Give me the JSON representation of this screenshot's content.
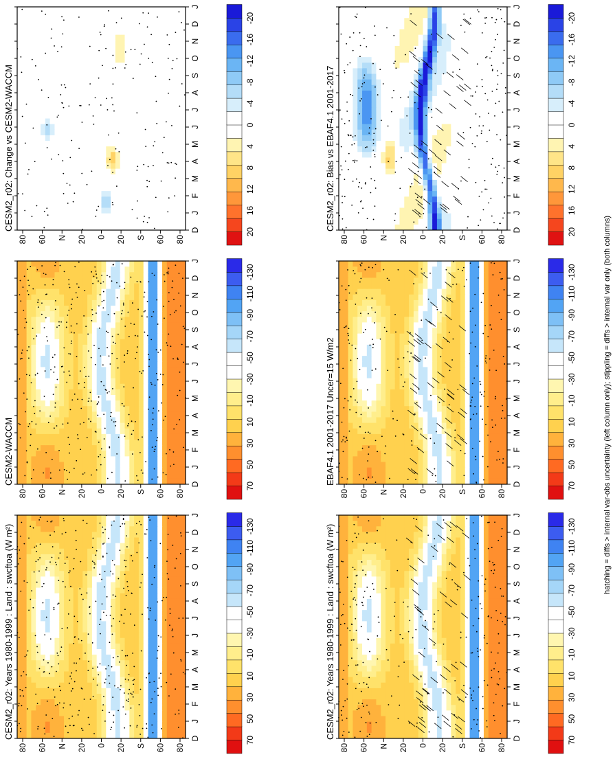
{
  "figure": {
    "footer_note": "hatching = diffs > internal var-obs uncertainty (left column only); stippling = diffs > internal var only (both columns)"
  },
  "colors": {
    "abs_levels_palette": [
      "#2a2ae8",
      "#3c5cf0",
      "#3f83f2",
      "#52a4f4",
      "#7ec0f6",
      "#a5d6f8",
      "#c6e6fa",
      "#ffffff",
      "#ffffff",
      "#fff6b0",
      "#ffee8c",
      "#ffe26a",
      "#ffd14e",
      "#ffb23c",
      "#ff8f2e",
      "#ff6a22",
      "#f33a18",
      "#e01010"
    ],
    "diff_levels_palette": [
      "#1a1ad8",
      "#2a43e6",
      "#3a6cee",
      "#4a96f2",
      "#6bb5f4",
      "#8fcaf6",
      "#b4ddf8",
      "#d7eefb",
      "#ffffff",
      "#ffffff",
      "#fff4b2",
      "#ffe588",
      "#ffd264",
      "#ffb84c",
      "#ff973a",
      "#ff722c",
      "#f5461e",
      "#e01212"
    ]
  },
  "chart_data": [
    {
      "type": "heatmap",
      "panel": "top-left",
      "title": "CESM2_r02: Years 1980-1999 : Land : swcftoa (W m²)",
      "x_ticks": [
        "D",
        "J",
        "F",
        "M",
        "A",
        "M",
        "J",
        "J",
        "A",
        "S",
        "O",
        "N",
        "D",
        "J"
      ],
      "y_ticks": [
        "80",
        "60",
        "N",
        "20",
        "0",
        "20",
        "S",
        "60",
        "80"
      ],
      "colorbar_ticks": [
        "70",
        "50",
        "30",
        "10",
        "-10",
        "-30",
        "-50",
        "-70",
        "-90",
        "-110",
        "-130"
      ],
      "hatching": true,
      "stippling": true
    },
    {
      "type": "heatmap",
      "panel": "middle-left",
      "title": "EBAF4.1 2001-2017 Uncer=15 W/m2",
      "x_ticks": [
        "D",
        "J",
        "F",
        "M",
        "A",
        "M",
        "J",
        "J",
        "A",
        "S",
        "O",
        "N",
        "D",
        "J"
      ],
      "y_ticks": [
        "80",
        "60",
        "N",
        "20",
        "0",
        "20",
        "S",
        "60",
        "80"
      ],
      "colorbar_ticks": [
        "70",
        "50",
        "30",
        "10",
        "-10",
        "-30",
        "-50",
        "-70",
        "-90",
        "-110",
        "-130"
      ],
      "hatching": true,
      "stippling": true
    },
    {
      "type": "heatmap",
      "panel": "bottom-left",
      "title": "CESM2_r02: Bias vs EBAF4.1 2001-2017",
      "x_ticks": [
        "D",
        "J",
        "F",
        "M",
        "A",
        "M",
        "J",
        "J",
        "A",
        "S",
        "O",
        "N",
        "D",
        "J"
      ],
      "y_ticks": [
        "80",
        "60",
        "N",
        "20",
        "0",
        "20",
        "S",
        "60",
        "80"
      ],
      "colorbar_ticks": [
        "20",
        "16",
        "12",
        "8",
        "4",
        "0",
        "-4",
        "-8",
        "-12",
        "-16",
        "-20"
      ],
      "hatching": true,
      "stippling": true
    },
    {
      "type": "heatmap",
      "panel": "top-right",
      "title": "CESM2_r02: Years 1980-1999 : Land : swcftoa (W m²)",
      "x_ticks": [
        "D",
        "J",
        "F",
        "M",
        "A",
        "M",
        "J",
        "J",
        "A",
        "S",
        "O",
        "N",
        "D",
        "J"
      ],
      "y_ticks": [
        "80",
        "60",
        "N",
        "20",
        "0",
        "20",
        "S",
        "60",
        "80"
      ],
      "colorbar_ticks": [
        "70",
        "50",
        "30",
        "10",
        "-10",
        "-30",
        "-50",
        "-70",
        "-90",
        "-110",
        "-130"
      ],
      "hatching": false,
      "stippling": true
    },
    {
      "type": "heatmap",
      "panel": "middle-right",
      "title": "CESM2-WACCM",
      "x_ticks": [
        "D",
        "J",
        "F",
        "M",
        "A",
        "M",
        "J",
        "J",
        "A",
        "S",
        "O",
        "N",
        "D",
        "J"
      ],
      "y_ticks": [
        "80",
        "60",
        "N",
        "20",
        "0",
        "20",
        "S",
        "60",
        "80"
      ],
      "colorbar_ticks": [
        "70",
        "50",
        "30",
        "10",
        "-10",
        "-30",
        "-50",
        "-70",
        "-90",
        "-110",
        "-130"
      ],
      "hatching": false,
      "stippling": true
    },
    {
      "type": "heatmap",
      "panel": "bottom-right",
      "title": "CESM2_r02: Change vs CESM2-WACCM",
      "x_ticks": [
        "D",
        "J",
        "F",
        "M",
        "A",
        "M",
        "J",
        "J",
        "A",
        "S",
        "O",
        "N",
        "D",
        "J"
      ],
      "y_ticks": [
        "80",
        "60",
        "N",
        "20",
        "0",
        "20",
        "S",
        "60",
        "80"
      ],
      "colorbar_ticks": [
        "20",
        "16",
        "12",
        "8",
        "4",
        "0",
        "-4",
        "-8",
        "-12",
        "-16",
        "-20"
      ],
      "hatching": false,
      "stippling": true
    }
  ]
}
